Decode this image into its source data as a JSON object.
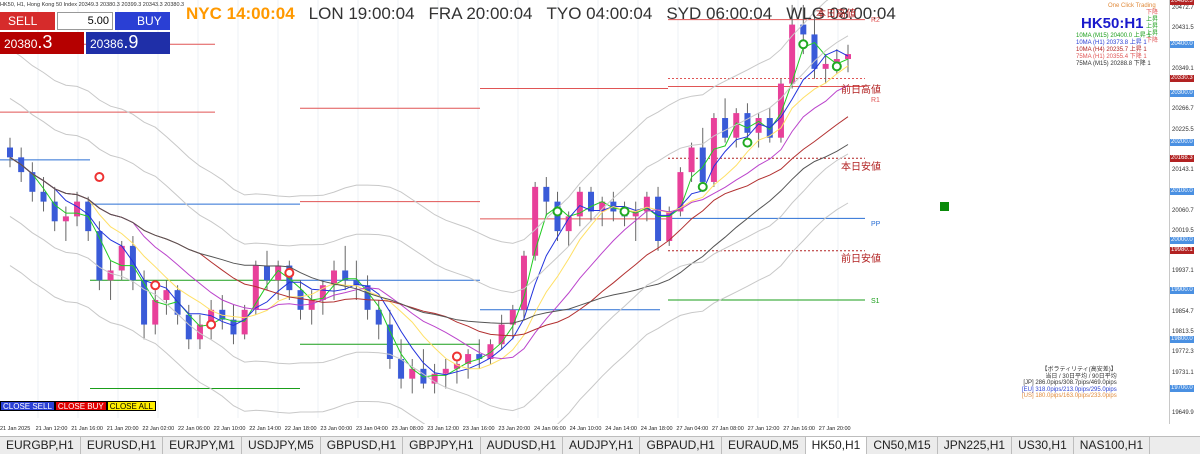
{
  "window": {
    "title": "HK50, H1, Hong Kong 50 Index  20349.3 20380.3 20399.3 20343.3 20380.3"
  },
  "trade_panel": {
    "sell_label": "SELL",
    "buy_label": "BUY",
    "lot": "5.00",
    "sell_price_main": "20380",
    "sell_price_big": ".3",
    "buy_price_main": "20386",
    "buy_price_big": ".9"
  },
  "clocks": [
    {
      "label": "NYC 14:00:04"
    },
    {
      "label": "LON 19:00:04"
    },
    {
      "label": "FRA 20:00:04"
    },
    {
      "label": "TYO 04:00:04"
    },
    {
      "label": "SYD 06:00:04"
    },
    {
      "label": "WLG 08:00:04"
    }
  ],
  "symbol_label": "HK50:H1",
  "one_click": "One Click Trading",
  "ma_panel": [
    {
      "text": "10MA (M15)  20400.0 上昇 1",
      "color": "#1a9e1a"
    },
    {
      "text": "10MA (H1)  20373.8 上昇 1",
      "color": "#2a3fd4"
    },
    {
      "text": "10MA (H4)  20235.7 上昇 1",
      "color": "#b22222"
    },
    {
      "text": "75MA (H1)  20355.4 下降 1",
      "color": "#e05555"
    },
    {
      "text": "75MA (M15)  20288.8 下降 1",
      "color": "#333333"
    }
  ],
  "trend_right": [
    "下降",
    "上昇",
    "上昇",
    "上昇",
    "下降"
  ],
  "level_labels": {
    "prev_high": "前日高値",
    "today_low": "本日安値",
    "prev_low": "前日安値",
    "r2": "R2",
    "r1": "R1",
    "pp": "PP",
    "s1": "S1",
    "next_high": "本日高値"
  },
  "price_scale": [
    {
      "v": "20472.7"
    },
    {
      "v": "20431.5"
    },
    {
      "v": "20400.0",
      "box": "#4a90e2"
    },
    {
      "v": "20349.1"
    },
    {
      "v": "20330.3",
      "box": "#b22222"
    },
    {
      "v": "20300.0",
      "box": "#4a90e2"
    },
    {
      "v": "20266.7"
    },
    {
      "v": "20225.5"
    },
    {
      "v": "20200.0",
      "box": "#4a90e2"
    },
    {
      "v": "20168.3",
      "box": "#b22222"
    },
    {
      "v": "20143.1"
    },
    {
      "v": "20100.0",
      "box": "#4a90e2"
    },
    {
      "v": "20060.7"
    },
    {
      "v": "20019.5"
    },
    {
      "v": "20000.0",
      "box": "#4a90e2"
    },
    {
      "v": "19980.1",
      "box": "#b22222"
    },
    {
      "v": "19937.1"
    },
    {
      "v": "19900.0",
      "box": "#4a90e2"
    },
    {
      "v": "19854.7"
    },
    {
      "v": "19813.5"
    },
    {
      "v": "19800.0",
      "box": "#4a90e2"
    },
    {
      "v": "19772.3"
    },
    {
      "v": "19731.1"
    },
    {
      "v": "19700.0",
      "box": "#4a90e2"
    },
    {
      "v": "19649.9"
    },
    {
      "v": "20486.3",
      "box": "#b22222"
    }
  ],
  "time_axis": [
    "21 Jan 2025",
    "21 Jan 12:00",
    "21 Jan 16:00",
    "21 Jan 20:00",
    "22 Jan 02:00",
    "22 Jan 06:00",
    "22 Jan 10:00",
    "22 Jan 14:00",
    "22 Jan 18:00",
    "23 Jan 00:00",
    "23 Jan 04:00",
    "23 Jan 08:00",
    "23 Jan 12:00",
    "23 Jan 16:00",
    "23 Jan 20:00",
    "24 Jan 06:00",
    "24 Jan 10:00",
    "24 Jan 14:00",
    "24 Jan 18:00",
    "27 Jan 04:00",
    "27 Jan 08:00",
    "27 Jan 12:00",
    "27 Jan 16:00",
    "27 Jan 20:00"
  ],
  "volatility": {
    "title": "【ボラティリティ(高安差)】",
    "header": "当日 / 30日平均 / 90日平均",
    "jp": "[JP] 286.0pips/308.7pips/469.0pips",
    "eu": "[EU] 318.0pips/213.0pips/295.0pips",
    "us": "[US] 180.0pips/163.0pips/233.0pips"
  },
  "close_buttons": {
    "sell": "CLOSE SELL",
    "buy": "CLOSE BUY",
    "all": "CLOSE ALL"
  },
  "tabs": [
    {
      "label": "EURGBP,H1"
    },
    {
      "label": "EURUSD,H1"
    },
    {
      "label": "EURJPY,M1"
    },
    {
      "label": "USDJPY,M5"
    },
    {
      "label": "GBPUSD,H1"
    },
    {
      "label": "GBPJPY,H1"
    },
    {
      "label": "AUDUSD,H1"
    },
    {
      "label": "AUDJPY,H1"
    },
    {
      "label": "GBPAUD,H1"
    },
    {
      "label": "EURAUD,M5"
    },
    {
      "label": "HK50,H1",
      "active": true
    },
    {
      "label": "CN50,M15"
    },
    {
      "label": "JPN225,H1"
    },
    {
      "label": "US30,H1"
    },
    {
      "label": "NAS100,H1"
    }
  ],
  "chart_data": {
    "type": "candlestick",
    "symbol": "HK50",
    "timeframe": "H1",
    "ylim": [
      19640,
      20490
    ],
    "candles": [
      [
        20190,
        20210,
        20150,
        20170
      ],
      [
        20170,
        20190,
        20120,
        20140
      ],
      [
        20140,
        20160,
        20080,
        20100
      ],
      [
        20100,
        20130,
        20060,
        20080
      ],
      [
        20080,
        20110,
        20020,
        20040
      ],
      [
        20040,
        20070,
        20000,
        20050
      ],
      [
        20050,
        20100,
        20030,
        20080
      ],
      [
        20080,
        20090,
        20000,
        20020
      ],
      [
        20020,
        20040,
        19900,
        19920
      ],
      [
        19920,
        19960,
        19880,
        19940
      ],
      [
        19940,
        20000,
        19920,
        19990
      ],
      [
        19990,
        20010,
        19900,
        19920
      ],
      [
        19920,
        19940,
        19800,
        19830
      ],
      [
        19830,
        19900,
        19810,
        19880
      ],
      [
        19880,
        19920,
        19850,
        19900
      ],
      [
        19900,
        19910,
        19830,
        19850
      ],
      [
        19850,
        19870,
        19780,
        19800
      ],
      [
        19800,
        19850,
        19780,
        19830
      ],
      [
        19830,
        19880,
        19800,
        19860
      ],
      [
        19860,
        19890,
        19820,
        19840
      ],
      [
        19840,
        19870,
        19790,
        19810
      ],
      [
        19810,
        19870,
        19800,
        19860
      ],
      [
        19860,
        19960,
        19850,
        19950
      ],
      [
        19950,
        19980,
        19900,
        19920
      ],
      [
        19920,
        19960,
        19880,
        19950
      ],
      [
        19950,
        19960,
        19880,
        19900
      ],
      [
        19900,
        19920,
        19840,
        19860
      ],
      [
        19860,
        19900,
        19830,
        19880
      ],
      [
        19880,
        19920,
        19850,
        19910
      ],
      [
        19910,
        19960,
        19880,
        19940
      ],
      [
        19940,
        19990,
        19900,
        19920
      ],
      [
        19920,
        19960,
        19880,
        19910
      ],
      [
        19910,
        19930,
        19840,
        19860
      ],
      [
        19860,
        19880,
        19800,
        19830
      ],
      [
        19830,
        19860,
        19740,
        19760
      ],
      [
        19760,
        19800,
        19700,
        19720
      ],
      [
        19720,
        19760,
        19690,
        19740
      ],
      [
        19740,
        19780,
        19700,
        19710
      ],
      [
        19710,
        19750,
        19690,
        19730
      ],
      [
        19730,
        19760,
        19700,
        19740
      ],
      [
        19740,
        19760,
        19710,
        19750
      ],
      [
        19750,
        19780,
        19720,
        19770
      ],
      [
        19770,
        19800,
        19740,
        19760
      ],
      [
        19760,
        19800,
        19750,
        19790
      ],
      [
        19790,
        19850,
        19780,
        19830
      ],
      [
        19830,
        19870,
        19800,
        19860
      ],
      [
        19860,
        19980,
        19840,
        19970
      ],
      [
        19970,
        20120,
        19960,
        20110
      ],
      [
        20110,
        20130,
        20050,
        20080
      ],
      [
        20080,
        20100,
        20000,
        20020
      ],
      [
        20020,
        20060,
        19990,
        20050
      ],
      [
        20050,
        20110,
        20030,
        20100
      ],
      [
        20100,
        20110,
        20040,
        20060
      ],
      [
        20060,
        20090,
        20030,
        20080
      ],
      [
        20080,
        20100,
        20040,
        20060
      ],
      [
        20060,
        20080,
        20030,
        20050
      ],
      [
        20050,
        20080,
        20000,
        20060
      ],
      [
        20060,
        20100,
        20040,
        20090
      ],
      [
        20090,
        20110,
        19980,
        20000
      ],
      [
        20000,
        20070,
        19990,
        20060
      ],
      [
        20060,
        20150,
        20050,
        20140
      ],
      [
        20140,
        20200,
        20120,
        20190
      ],
      [
        20190,
        20230,
        20100,
        20120
      ],
      [
        20120,
        20260,
        20110,
        20250
      ],
      [
        20250,
        20290,
        20200,
        20210
      ],
      [
        20210,
        20270,
        20190,
        20260
      ],
      [
        20260,
        20280,
        20200,
        20220
      ],
      [
        20220,
        20260,
        20190,
        20250
      ],
      [
        20250,
        20270,
        20200,
        20210
      ],
      [
        20210,
        20330,
        20200,
        20320
      ],
      [
        20320,
        20480,
        20310,
        20440
      ],
      [
        20440,
        20480,
        20380,
        20420
      ],
      [
        20420,
        20460,
        20330,
        20350
      ],
      [
        20350,
        20380,
        20320,
        20360
      ],
      [
        20360,
        20390,
        20340,
        20370
      ],
      [
        20370,
        20399,
        20343,
        20380
      ]
    ]
  }
}
